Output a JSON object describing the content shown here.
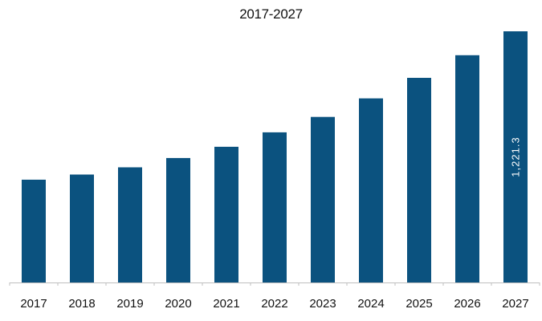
{
  "chart_data": {
    "type": "bar",
    "title": "2017-2027",
    "xlabel": "",
    "ylabel": "",
    "categories": [
      "2017",
      "2018",
      "2019",
      "2020",
      "2021",
      "2022",
      "2023",
      "2024",
      "2025",
      "2026",
      "2027"
    ],
    "values": [
      500,
      525,
      560,
      605,
      660,
      730,
      805,
      895,
      995,
      1105,
      1221.3
    ],
    "data_labels": [
      {
        "index": 10,
        "text": "1,221.3",
        "orientation": "vertical"
      }
    ],
    "ylim": [
      0,
      1221.3
    ],
    "grid": false,
    "legend": "none",
    "y_axis_visible": false,
    "colors": {
      "bar": "#0b527f",
      "axis": "#bfbfbf",
      "text": "#111111",
      "data_label": "#ffffff"
    }
  }
}
